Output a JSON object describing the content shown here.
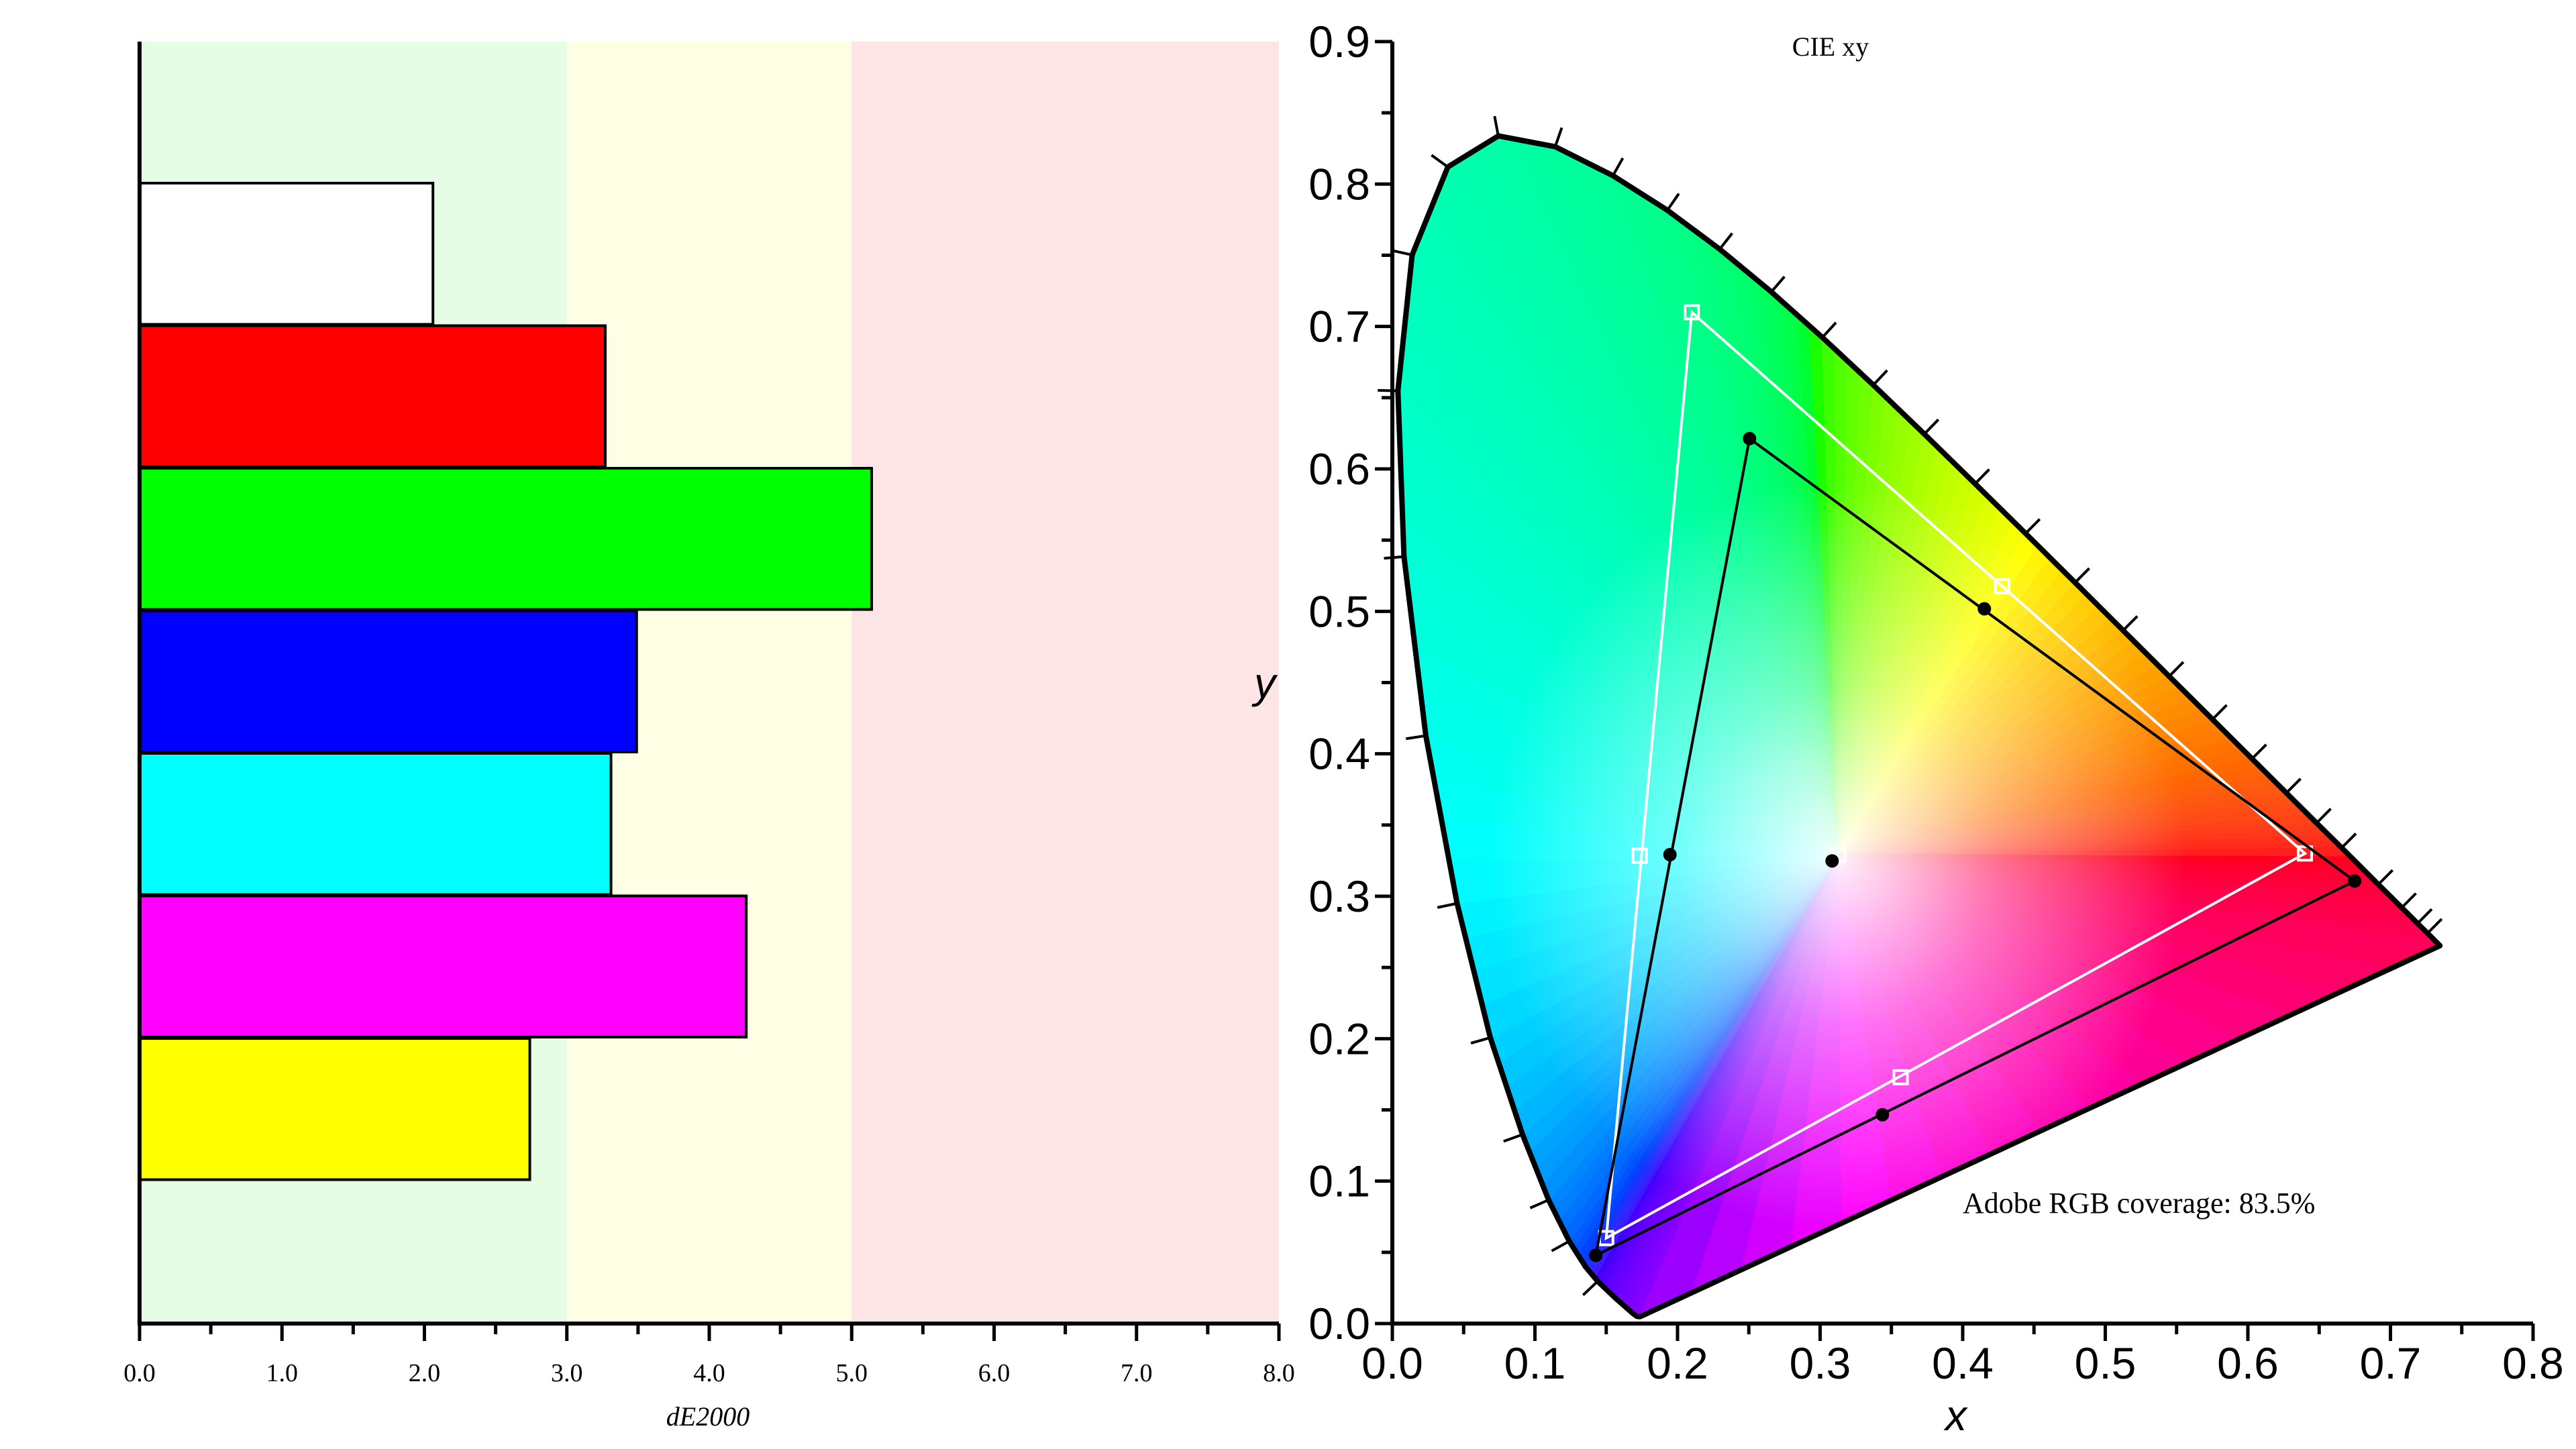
{
  "colors": {
    "zone_good": "#e5fde5",
    "zone_warn": "#fefee5",
    "zone_bad": "#fee5e5",
    "axis": "#000000",
    "reference_gamut": "#ffffff",
    "measured_gamut": "#000000"
  },
  "chart_data": [
    {
      "type": "bar",
      "orientation": "horizontal",
      "xlabel": "dE2000",
      "xlim": [
        0,
        8
      ],
      "xticks": [
        "0.0",
        "1.0",
        "2.0",
        "3.0",
        "4.0",
        "5.0",
        "6.0",
        "7.0",
        "8.0"
      ],
      "zones": [
        {
          "from": 0,
          "to": 3,
          "color": "#e5fde5"
        },
        {
          "from": 3,
          "to": 5,
          "color": "#fefee5"
        },
        {
          "from": 5,
          "to": 8,
          "color": "#fee5e5"
        }
      ],
      "bars": [
        {
          "color": "#ffffff",
          "value": 2.06
        },
        {
          "color": "#ff0000",
          "value": 3.27
        },
        {
          "color": "#00ff00",
          "value": 5.14
        },
        {
          "color": "#0000ff",
          "value": 3.49
        },
        {
          "color": "#00ffff",
          "value": 3.31
        },
        {
          "color": "#ff00ff",
          "value": 4.26
        },
        {
          "color": "#ffff00",
          "value": 2.74
        }
      ],
      "grid": false
    },
    {
      "type": "scatter",
      "title": "CIE xy",
      "xlabel": "x",
      "ylabel": "y",
      "xlim": [
        0,
        0.8
      ],
      "ylim": [
        0,
        0.9
      ],
      "xticks": [
        "0.0",
        "0.1",
        "0.2",
        "0.3",
        "0.4",
        "0.5",
        "0.6",
        "0.7",
        "0.8"
      ],
      "yticks": [
        "0.0",
        "0.1",
        "0.2",
        "0.3",
        "0.4",
        "0.5",
        "0.6",
        "0.7",
        "0.8",
        "0.9"
      ],
      "annotation": "Adobe RGB coverage: 83.5%",
      "reference_gamut": {
        "red": [
          0.64,
          0.33
        ],
        "green": [
          0.21,
          0.71
        ],
        "blue": [
          0.15,
          0.06
        ],
        "white": [
          0.3127,
          0.329
        ],
        "cyan": [
          0.1735,
          0.3284
        ],
        "yellow": [
          0.4278,
          0.5176
        ],
        "magenta": [
          0.3565,
          0.1729
        ]
      },
      "measured_gamut": {
        "red": [
          0.6749,
          0.3107
        ],
        "green": [
          0.2505,
          0.6213
        ],
        "blue": [
          0.1427,
          0.0479
        ],
        "white": [
          0.3084,
          0.3248
        ],
        "cyan": [
          0.1947,
          0.3292
        ],
        "yellow": [
          0.4152,
          0.5018
        ],
        "magenta": [
          0.3437,
          0.1466
        ]
      },
      "grid": false
    }
  ]
}
